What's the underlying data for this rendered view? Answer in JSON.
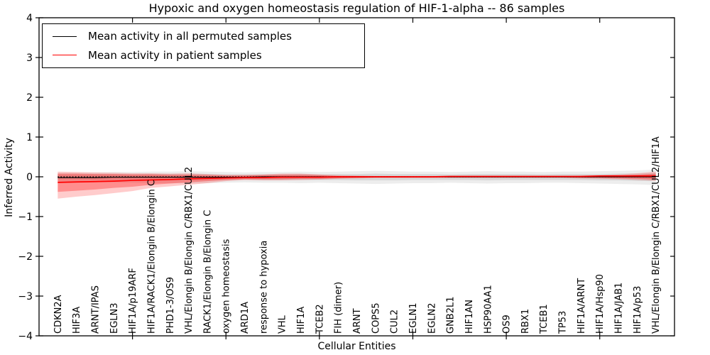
{
  "title": "Hypoxic and oxygen homeostasis regulation of HIF-1-alpha -- 86 samples",
  "axes": {
    "ylabel": "Inferred Activity",
    "xlabel": "Cellular Entities",
    "ytick_labels": [
      "4",
      "3",
      "2",
      "1",
      "0",
      "−1",
      "−2",
      "−3",
      "−4"
    ]
  },
  "legend": {
    "items": [
      {
        "label": "Mean activity in all permuted samples",
        "color": "#000000"
      },
      {
        "label": "Mean activity in patient samples",
        "color": "#ff0000"
      }
    ]
  },
  "chart_data": {
    "type": "line",
    "title": "Hypoxic and oxygen homeostasis regulation of HIF-1-alpha -- 86 samples",
    "xlabel": "Cellular Entities",
    "ylabel": "Inferred Activity",
    "ylim": [
      -4,
      4
    ],
    "yticks": [
      4,
      3,
      2,
      1,
      0,
      -1,
      -2,
      -3,
      -4
    ],
    "x_major_tick_indices": [
      5,
      10,
      15,
      20,
      25,
      30
    ],
    "grid": false,
    "legend_position": "upper left",
    "categories": [
      "CDKN2A",
      "HIF3A",
      "ARNT/IPAS",
      "EGLN3",
      "HIF1A/p19ARF",
      "HIF1A/RACK1/Elongin B/Elongin C",
      "PHD1-3/OS9",
      "VHL/Elongin B/Elongin C/RBX1/CUL2",
      "RACK1/Elongin B/Elongin C",
      "oxygen homeostasis",
      "ARD1A",
      "response to hypoxia",
      "VHL",
      "HIF1A",
      "TCEB2",
      "FIH (dimer)",
      "ARNT",
      "COPS5",
      "CUL2",
      "EGLN1",
      "EGLN2",
      "GNB2L1",
      "HIF1AN",
      "HSP90AA1",
      "OS9",
      "RBX1",
      "TCEB1",
      "TP53",
      "HIF1A/ARNT",
      "HIF1A/Hsp90",
      "HIF1A/JAB1",
      "HIF1A/p53",
      "VHL/Elongin B/Elongin C/RBX1/CUL2/HIF1A"
    ],
    "series": [
      {
        "name": "Mean activity in all permuted samples",
        "color": "#000000",
        "values": [
          -0.02,
          -0.02,
          -0.02,
          -0.01,
          -0.01,
          -0.01,
          -0.01,
          -0.01,
          -0.01,
          -0.01,
          -0.01,
          0,
          0,
          0,
          0,
          0,
          0,
          0,
          0,
          0,
          0,
          0,
          0,
          0,
          0,
          0,
          0,
          0,
          0,
          0,
          0,
          0,
          0
        ]
      },
      {
        "name": "Mean activity in patient samples",
        "color": "#ff0000",
        "values": [
          -0.14,
          -0.13,
          -0.12,
          -0.11,
          -0.09,
          -0.08,
          -0.07,
          -0.05,
          -0.04,
          -0.03,
          -0.02,
          -0.02,
          -0.01,
          -0.01,
          -0.01,
          0,
          0,
          0,
          0,
          0,
          0,
          0.01,
          0.01,
          0.01,
          0.01,
          0.01,
          0.01,
          0.01,
          0.01,
          0.02,
          0.02,
          0.02,
          0.02
        ]
      }
    ],
    "zero_line": {
      "y": 0,
      "color": "#000000",
      "style": "dotted"
    },
    "bands": [
      {
        "name": "permuted-range-outer",
        "color": "rgba(0,0,0,0.07)",
        "upper": [
          0.1,
          0.1,
          0.11,
          0.12,
          0.12,
          0.13,
          0.13,
          0.14,
          0.13,
          0.12,
          0.11,
          0.12,
          0.12,
          0.13,
          0.12,
          0.13,
          0.14,
          0.15,
          0.14,
          0.13,
          0.13,
          0.12,
          0.13,
          0.14,
          0.13,
          0.13,
          0.12,
          0.13,
          0.13,
          0.14,
          0.15,
          0.16,
          0.18
        ],
        "lower": [
          -0.12,
          -0.13,
          -0.13,
          -0.14,
          -0.15,
          -0.16,
          -0.16,
          -0.17,
          -0.16,
          -0.15,
          -0.14,
          -0.15,
          -0.15,
          -0.16,
          -0.15,
          -0.16,
          -0.17,
          -0.18,
          -0.17,
          -0.16,
          -0.16,
          -0.15,
          -0.16,
          -0.17,
          -0.16,
          -0.16,
          -0.15,
          -0.15,
          -0.16,
          -0.17,
          -0.18,
          -0.19,
          -0.21
        ]
      },
      {
        "name": "permuted-range-inner",
        "color": "rgba(0,0,0,0.09)",
        "upper": [
          0.05,
          0.05,
          0.06,
          0.06,
          0.06,
          0.07,
          0.07,
          0.07,
          0.07,
          0.06,
          0.06,
          0.06,
          0.06,
          0.07,
          0.06,
          0.07,
          0.07,
          0.08,
          0.07,
          0.07,
          0.07,
          0.06,
          0.07,
          0.07,
          0.07,
          0.07,
          0.06,
          0.07,
          0.07,
          0.07,
          0.08,
          0.08,
          0.09
        ],
        "lower": [
          -0.06,
          -0.06,
          -0.07,
          -0.07,
          -0.07,
          -0.08,
          -0.08,
          -0.09,
          -0.08,
          -0.08,
          -0.07,
          -0.08,
          -0.08,
          -0.08,
          -0.08,
          -0.08,
          -0.09,
          -0.09,
          -0.09,
          -0.08,
          -0.08,
          -0.08,
          -0.08,
          -0.09,
          -0.08,
          -0.08,
          -0.08,
          -0.08,
          -0.08,
          -0.09,
          -0.09,
          -0.1,
          -0.11
        ]
      },
      {
        "name": "patient-range-outer",
        "color": "rgba(255,0,0,0.20)",
        "upper": [
          0.13,
          0.12,
          0.11,
          0.1,
          0.09,
          0.09,
          0.08,
          0.09,
          0.07,
          0.05,
          0.05,
          0.06,
          0.08,
          0.08,
          0.06,
          0.04,
          0.03,
          0.02,
          0.02,
          0.02,
          0.02,
          0.02,
          0.02,
          0.02,
          0.02,
          0.02,
          0.02,
          0.02,
          0.03,
          0.04,
          0.06,
          0.09,
          0.13
        ],
        "lower": [
          -0.55,
          -0.5,
          -0.46,
          -0.41,
          -0.36,
          -0.28,
          -0.24,
          -0.2,
          -0.16,
          -0.11,
          -0.08,
          -0.09,
          -0.09,
          -0.08,
          -0.07,
          -0.05,
          -0.04,
          -0.03,
          -0.03,
          -0.03,
          -0.03,
          -0.03,
          -0.03,
          -0.03,
          -0.03,
          -0.03,
          -0.03,
          -0.03,
          -0.04,
          -0.05,
          -0.06,
          -0.08,
          -0.1
        ]
      },
      {
        "name": "patient-range-inner",
        "color": "rgba(255,0,0,0.30)",
        "upper": [
          0.08,
          0.08,
          0.07,
          0.07,
          0.06,
          0.06,
          0.05,
          0.05,
          0.04,
          0.03,
          0.03,
          0.04,
          0.05,
          0.05,
          0.04,
          0.02,
          0.02,
          0.01,
          0.01,
          0.01,
          0.01,
          0.01,
          0.01,
          0.01,
          0.01,
          0.01,
          0.01,
          0.01,
          0.02,
          0.02,
          0.03,
          0.05,
          0.08
        ],
        "lower": [
          -0.38,
          -0.35,
          -0.32,
          -0.28,
          -0.25,
          -0.2,
          -0.17,
          -0.14,
          -0.11,
          -0.08,
          -0.06,
          -0.06,
          -0.06,
          -0.05,
          -0.05,
          -0.04,
          -0.03,
          -0.02,
          -0.02,
          -0.02,
          -0.02,
          -0.02,
          -0.02,
          -0.02,
          -0.02,
          -0.02,
          -0.02,
          -0.02,
          -0.03,
          -0.03,
          -0.04,
          -0.05,
          -0.07
        ]
      }
    ]
  }
}
